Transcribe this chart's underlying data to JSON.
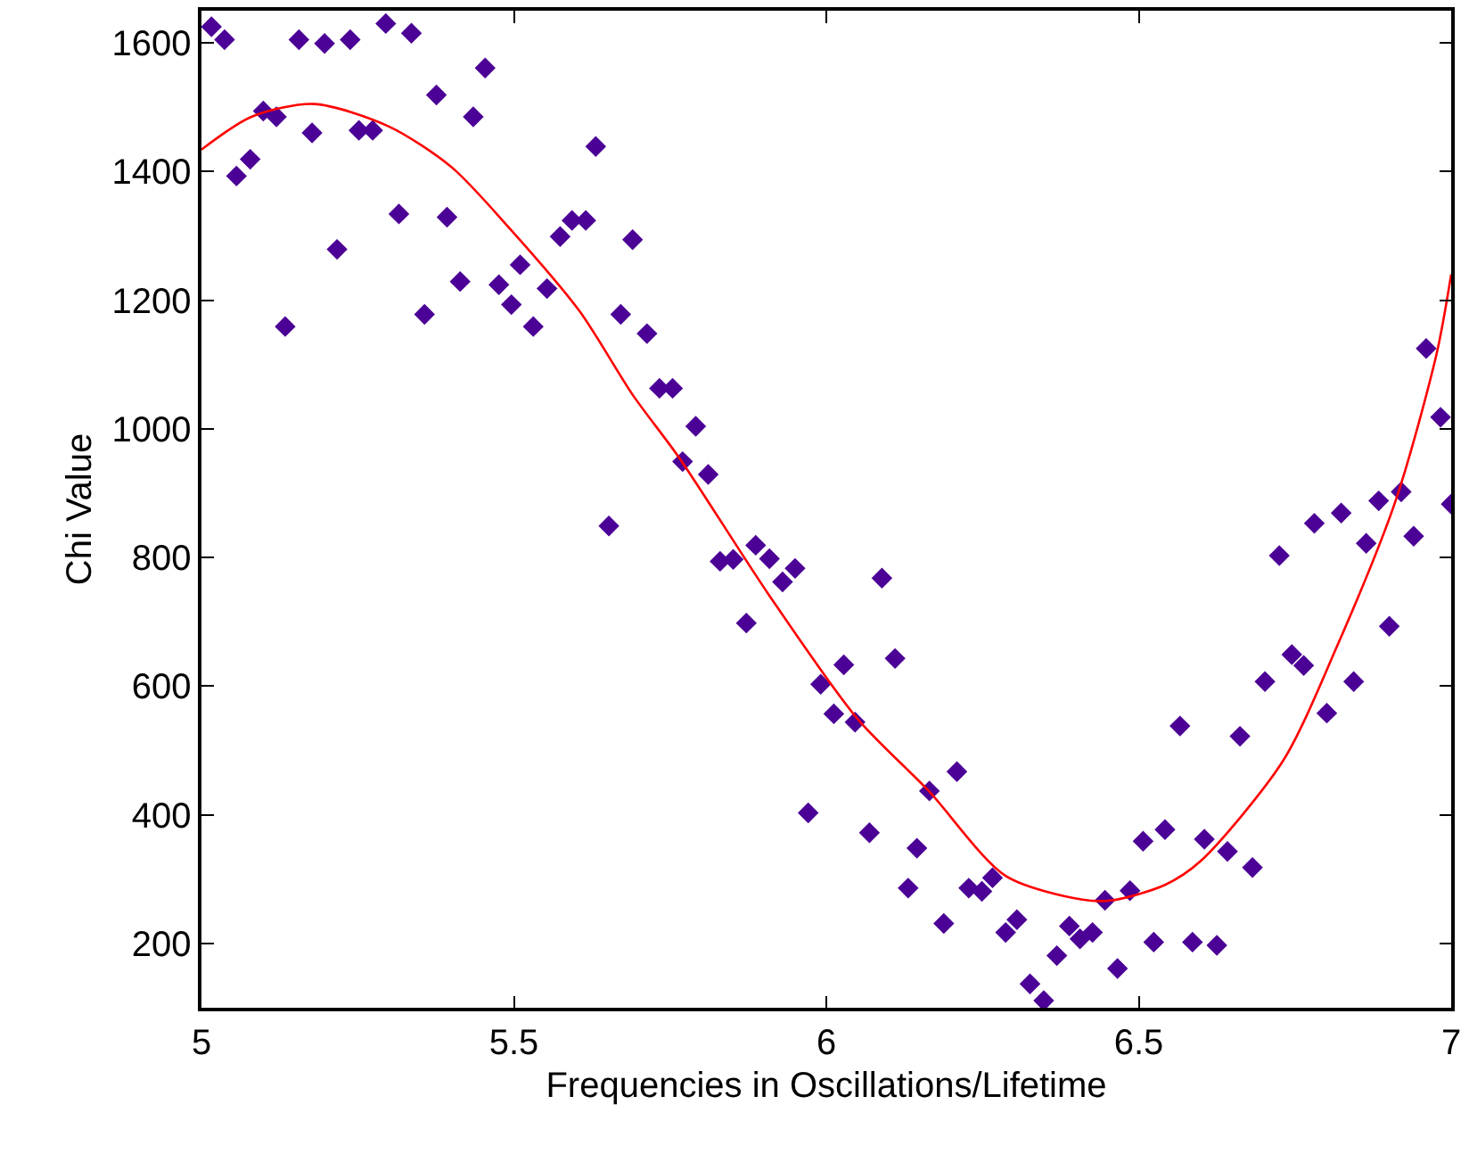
{
  "chart_data": {
    "type": "scatter",
    "xlabel": "Frequencies in Oscillations/Lifetime",
    "ylabel": "Chi Value",
    "xlim": [
      5,
      7
    ],
    "ylim": [
      100,
      1650
    ],
    "xticks": [
      5,
      5.5,
      6,
      6.5,
      7
    ],
    "yticks": [
      200,
      400,
      600,
      800,
      1000,
      1200,
      1400,
      1600
    ],
    "grid": false,
    "series": [
      {
        "color": "#4b0096",
        "marker": "diamond",
        "x": [
          5.016,
          5.037,
          5.056,
          5.078,
          5.099,
          5.12,
          5.134,
          5.156,
          5.177,
          5.197,
          5.217,
          5.238,
          5.252,
          5.274,
          5.295,
          5.316,
          5.336,
          5.357,
          5.376,
          5.393,
          5.414,
          5.435,
          5.454,
          5.476,
          5.496,
          5.51,
          5.531,
          5.553,
          5.574,
          5.593,
          5.615,
          5.631,
          5.652,
          5.671,
          5.69,
          5.713,
          5.733,
          5.754,
          5.77,
          5.791,
          5.811,
          5.83,
          5.851,
          5.872,
          5.887,
          5.909,
          5.93,
          5.95,
          5.971,
          5.991,
          6.012,
          6.028,
          6.046,
          6.069,
          6.089,
          6.11,
          6.131,
          6.145,
          6.165,
          6.188,
          6.209,
          6.228,
          6.249,
          6.266,
          6.287,
          6.305,
          6.326,
          6.348,
          6.369,
          6.389,
          6.406,
          6.426,
          6.446,
          6.466,
          6.486,
          6.507,
          6.524,
          6.542,
          6.566,
          6.586,
          6.605,
          6.625,
          6.642,
          6.662,
          6.682,
          6.702,
          6.725,
          6.745,
          6.764,
          6.781,
          6.801,
          6.824,
          6.844,
          6.864,
          6.884,
          6.901,
          6.92,
          6.94,
          6.96,
          6.983,
          7.0
        ],
        "values": [
          1625,
          1605,
          1393,
          1419,
          1494,
          1485,
          1159,
          1605,
          1460,
          1599,
          1279,
          1605,
          1464,
          1464,
          1630,
          1334,
          1615,
          1178,
          1519,
          1329,
          1229,
          1485,
          1561,
          1224,
          1193,
          1255,
          1159,
          1218,
          1299,
          1324,
          1324,
          1439,
          849,
          1178,
          1294,
          1148,
          1063,
          1063,
          949,
          1004,
          929,
          794,
          797,
          698,
          819,
          798,
          762,
          783,
          403,
          603,
          557,
          633,
          544,
          372,
          768,
          643,
          286,
          348,
          437,
          231,
          467,
          286,
          281,
          302,
          217,
          237,
          137,
          111,
          181,
          227,
          207,
          217,
          267,
          161,
          282,
          359,
          202,
          377,
          538,
          202,
          362,
          197,
          343,
          522,
          318,
          607,
          803,
          649,
          632,
          853,
          558,
          869,
          607,
          822,
          888,
          693,
          902,
          833,
          1125,
          1018,
          883
        ]
      },
      {
        "type": "line",
        "color": "#ff0000",
        "marker": "none",
        "line_style": "solid",
        "x": [
          5.0,
          5.08,
          5.18,
          5.3,
          5.4,
          5.49,
          5.605,
          5.69,
          5.766,
          5.908,
          6.05,
          6.163,
          6.287,
          6.41,
          6.457,
          6.542,
          6.599,
          6.731,
          6.816,
          6.911,
          6.977,
          7.0
        ],
        "values": [
          1434,
          1485,
          1505,
          1470,
          1407,
          1315,
          1183,
          1053,
          953,
          742,
          549,
          438,
          305,
          268,
          267,
          291,
          328,
          484,
          659,
          888,
          1118,
          1240
        ]
      }
    ]
  }
}
